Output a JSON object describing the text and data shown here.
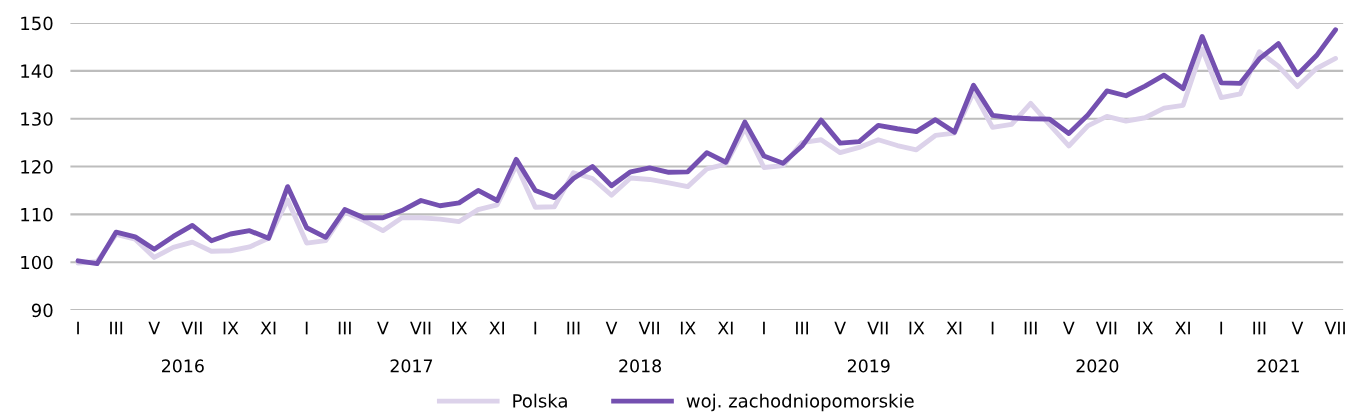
{
  "chart_data": {
    "type": "line",
    "categories": [
      "I",
      null,
      "III",
      null,
      "V",
      null,
      "VII",
      null,
      "IX",
      null,
      "XI",
      null,
      "I",
      null,
      "III",
      null,
      "V",
      null,
      "VII",
      null,
      "IX",
      null,
      "XI",
      null,
      "I",
      null,
      "III",
      null,
      "V",
      null,
      "VII",
      null,
      "IX",
      null,
      "XI",
      null,
      "I",
      null,
      "III",
      null,
      "V",
      null,
      "VII",
      null,
      "IX",
      null,
      "XI",
      null,
      "I",
      null,
      "III",
      null,
      "V",
      null,
      "VII",
      null,
      "IX",
      null,
      "XI",
      null,
      "I",
      null,
      "III",
      null,
      "V",
      null,
      "VII"
    ],
    "series": [
      {
        "name": "Polska",
        "color": "#dcd2ea",
        "values": [
          99.8,
          100.1,
          105.8,
          104.8,
          101.0,
          103.1,
          104.2,
          102.3,
          102.4,
          103.2,
          105.0,
          113.0,
          104.0,
          104.5,
          110.5,
          108.7,
          106.6,
          109.3,
          109.3,
          109.0,
          108.5,
          111.0,
          112.0,
          120.3,
          111.5,
          111.6,
          118.7,
          117.5,
          114.0,
          117.6,
          117.3,
          116.6,
          115.8,
          119.5,
          120.5,
          128.0,
          119.8,
          120.2,
          125.0,
          125.6,
          122.9,
          124.0,
          125.6,
          124.4,
          123.5,
          126.5,
          127.0,
          135.5,
          128.2,
          128.8,
          133.2,
          128.7,
          124.3,
          128.5,
          130.5,
          129.5,
          130.2,
          132.2,
          132.8,
          144.6,
          134.4,
          135.2,
          144.0,
          141.0,
          136.7,
          140.5,
          142.6
        ]
      },
      {
        "name": "woj. zachodniopomorskie",
        "color": "#7450b0",
        "values": [
          100.3,
          99.7,
          106.3,
          105.3,
          102.7,
          105.4,
          107.7,
          104.5,
          105.9,
          106.6,
          105.0,
          115.8,
          107.2,
          105.2,
          111.0,
          109.3,
          109.3,
          110.8,
          112.9,
          111.8,
          112.4,
          115.0,
          112.9,
          121.5,
          115.0,
          113.5,
          117.5,
          120.0,
          116.0,
          118.9,
          119.7,
          118.8,
          118.9,
          122.9,
          120.9,
          129.3,
          122.2,
          120.7,
          124.3,
          129.7,
          124.9,
          125.2,
          128.6,
          127.9,
          127.3,
          129.8,
          127.2,
          137.0,
          130.7,
          130.2,
          130.0,
          129.9,
          126.9,
          130.8,
          135.8,
          134.8,
          136.8,
          139.1,
          136.3,
          147.2,
          137.5,
          137.4,
          142.5,
          145.7,
          139.2,
          143.2,
          148.6
        ]
      }
    ],
    "annotations": [
      "2016",
      "2017",
      "2018",
      "2019",
      "2020",
      "2021"
    ],
    "ylim": [
      90,
      150
    ],
    "yticks": [
      90,
      100,
      110,
      120,
      130,
      140,
      150
    ],
    "grid": "y",
    "legend": "bottom",
    "line_style": "solid",
    "marker": "none"
  }
}
